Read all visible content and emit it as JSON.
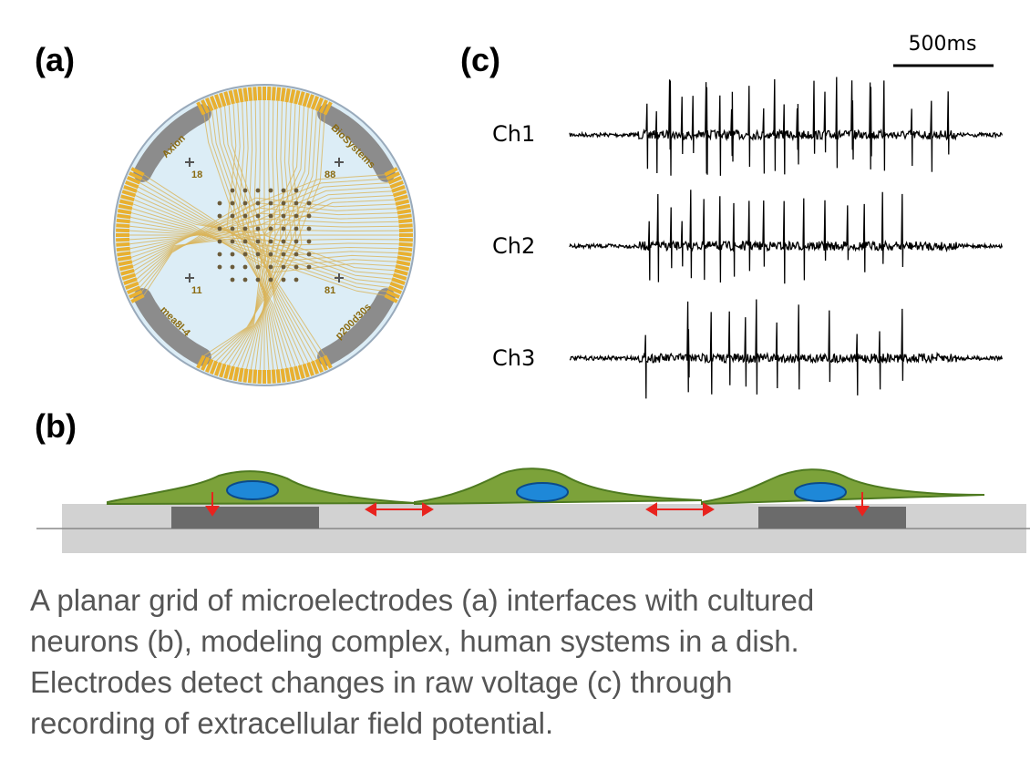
{
  "panels": {
    "a": {
      "label": "(a)",
      "mea_labels": {
        "top_left": "Axion",
        "top_right": "BioSystems",
        "bottom_left": "mea8l-4",
        "bottom_right": "p200d30s"
      },
      "electrode_numbers": [
        "18",
        "88",
        "11",
        "81"
      ]
    },
    "b": {
      "label": "(b)"
    },
    "c": {
      "label": "(c)",
      "scale_bar": "500ms",
      "channels": [
        "Ch1",
        "Ch2",
        "Ch3"
      ]
    }
  },
  "caption": {
    "lines": [
      "A planar grid of microelectrodes (a) interfaces with cultured",
      "neurons (b), modeling complex, human systems in a dish.",
      "Electrodes detect changes in raw voltage (c) through",
      "recording of extracellular field potential."
    ]
  }
}
